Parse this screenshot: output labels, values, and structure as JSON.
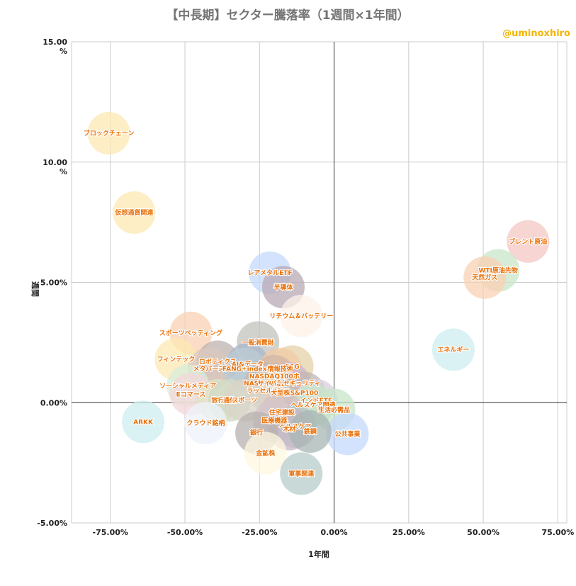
{
  "chart_data": {
    "type": "scatter",
    "title": "【中長期】セクター騰落率（1週間×1年間）",
    "credit": "@uminoxhiro",
    "xlabel": "1年間",
    "ylabel": "週間",
    "xlim": [
      -88,
      78
    ],
    "ylim": [
      -5,
      15
    ],
    "x_ticks": [
      -75,
      -50,
      -25,
      0,
      25,
      50,
      75
    ],
    "x_tick_labels": [
      "-75.00%",
      "-50.00%",
      "-25.00%",
      "0.00%",
      "25.00%",
      "50.00%",
      "75.00%"
    ],
    "y_ticks": [
      -5,
      0,
      5,
      10,
      15
    ],
    "y_tick_labels": [
      "-5.00%",
      "0.00%",
      "5.00%",
      "10.00\n%",
      "15.00\n%"
    ],
    "grid": true,
    "points": [
      {
        "name": "ブロックチェーン",
        "x": -75.5,
        "y": 11.2,
        "color": "#fce8b2"
      },
      {
        "name": "仮想通貨関連",
        "x": -67,
        "y": 7.9,
        "color": "#fce8b2"
      },
      {
        "name": "ブレント原油",
        "x": 65,
        "y": 6.7,
        "color": "#f4c7c3"
      },
      {
        "name": "WTI原油先物",
        "x": 55,
        "y": 5.5,
        "color": "#c8e6c9"
      },
      {
        "name": "天然ガス",
        "x": 50.5,
        "y": 5.2,
        "color": "#fad2b4"
      },
      {
        "name": "エネルギー",
        "x": 40,
        "y": 2.2,
        "color": "#cfeef0"
      },
      {
        "name": "レアメタルETF",
        "x": -21.5,
        "y": 5.4,
        "color": "#c6dafc"
      },
      {
        "name": "半導体",
        "x": -17,
        "y": 4.8,
        "color": "#b9a9b4"
      },
      {
        "name": "リチウム＆バッテリー",
        "x": -11,
        "y": 3.6,
        "color": "#fff1ea"
      },
      {
        "name": "スポーツベッティング",
        "x": -48,
        "y": 2.9,
        "color": "#fad2b4"
      },
      {
        "name": "一般消費財",
        "x": -25.5,
        "y": 2.5,
        "color": "#c2c2bc"
      },
      {
        "name": "フィンテック",
        "x": -53,
        "y": 1.8,
        "color": "#fce8b2"
      },
      {
        "name": "ロボティクス",
        "x": -39,
        "y": 1.7,
        "color": "#bfb3b0"
      },
      {
        "name": "AI&データ",
        "x": -29,
        "y": 1.6,
        "color": "#aab7c9"
      },
      {
        "name": "ESG",
        "x": -14,
        "y": 1.5,
        "color": "#e6d2a8"
      },
      {
        "name": "メタバース",
        "x": -42,
        "y": 1.4,
        "color": "#d9c7bd"
      },
      {
        "name": "FANG+index",
        "x": -30,
        "y": 1.4,
        "color": "#bccbd4"
      },
      {
        "name": "情報技術",
        "x": -18,
        "y": 1.4,
        "color": "#f2c9a6"
      },
      {
        "name": "NASDAQ100ホ",
        "x": -20,
        "y": 1.1,
        "color": "#d1b7a7"
      },
      {
        "name": "ソーシャルメディア",
        "x": -49,
        "y": 0.7,
        "color": "#d8ecd9"
      },
      {
        "name": "NASDAQ総合",
        "x": -23,
        "y": 0.8,
        "color": "#c4b8b0"
      },
      {
        "name": "サイバーセキュリティ",
        "x": -15,
        "y": 0.8,
        "color": "#c9b6cf"
      },
      {
        "name": "ラッセル2000",
        "x": -22,
        "y": 0.5,
        "color": "#d4d1c4"
      },
      {
        "name": "大型株",
        "x": -18,
        "y": 0.4,
        "color": "#e0d4c2"
      },
      {
        "name": "S&P100",
        "x": -10,
        "y": 0.4,
        "color": "#c2b7b2"
      },
      {
        "name": "Eコマース",
        "x": -48,
        "y": 0.35,
        "color": "#f2d7da"
      },
      {
        "name": "旅行",
        "x": -39,
        "y": 0.1,
        "color": "#dfe3c4"
      },
      {
        "name": "通信",
        "x": -35,
        "y": 0.1,
        "color": "#cfd8c2"
      },
      {
        "name": "スポーツ",
        "x": -30,
        "y": 0.1,
        "color": "#dad4c8"
      },
      {
        "name": "インドETF",
        "x": -6,
        "y": 0.1,
        "color": "#d8d0de"
      },
      {
        "name": "ヘルスケア関連",
        "x": -7,
        "y": -0.1,
        "color": "#c8e6c9"
      },
      {
        "name": "生活必需品",
        "x": 0,
        "y": -0.3,
        "color": "#c8e6c9"
      },
      {
        "name": "住宅建設",
        "x": -17.5,
        "y": -0.4,
        "color": "#d6c1c4"
      },
      {
        "name": "クラウド銘柄",
        "x": -43,
        "y": -0.85,
        "color": "#eef1fb"
      },
      {
        "name": "医療機器",
        "x": -20,
        "y": -0.75,
        "color": "#d5c6c9"
      },
      {
        "name": "ヘルスケア",
        "x": -13,
        "y": -1.0,
        "color": "#b6c4c2"
      },
      {
        "name": "公共事業",
        "x": 4.5,
        "y": -1.3,
        "color": "#c6dafc"
      },
      {
        "name": "木材",
        "x": -15,
        "y": -1.1,
        "color": "#c7b8c6"
      },
      {
        "name": "鉄鋼",
        "x": -8,
        "y": -1.2,
        "color": "#a8b5b4"
      },
      {
        "name": "銀行",
        "x": -26,
        "y": -1.25,
        "color": "#b7b1ae"
      },
      {
        "name": "ARKK",
        "x": -64,
        "y": -0.8,
        "color": "#cfeef0"
      },
      {
        "name": "金鉱株",
        "x": -23,
        "y": -2.1,
        "color": "#fff7e0"
      },
      {
        "name": "軍事関連",
        "x": -11,
        "y": -2.95,
        "color": "#b7ccc9"
      }
    ]
  }
}
